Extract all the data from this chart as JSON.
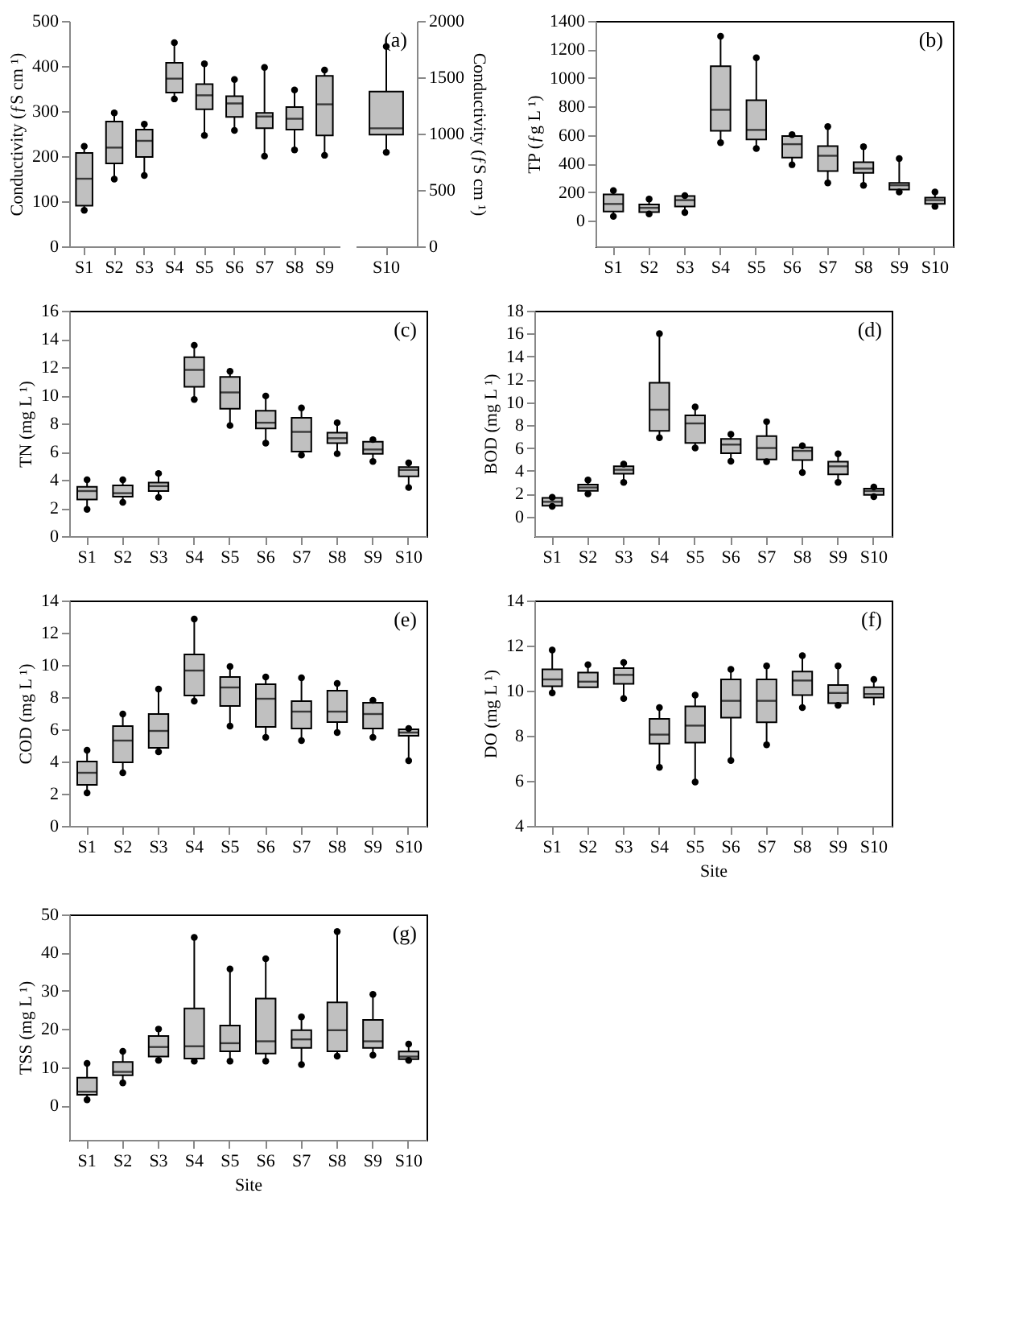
{
  "chart_data": [
    {
      "type": "box",
      "categories": [
        "S1",
        "S2",
        "S3",
        "S4",
        "S5",
        "S6",
        "S7",
        "S8",
        "S9"
      ],
      "ylabel": "Conductivity (ƒS cm ¹)",
      "ylim": [
        0,
        500
      ],
      "yticks": [
        0,
        100,
        200,
        300,
        400,
        500
      ],
      "grid": false,
      "boxes": [
        {
          "low": 80,
          "q1": 90,
          "median": 150,
          "q3": 207,
          "high": 222,
          "outliers": [
            80,
            222
          ]
        },
        {
          "low": 149,
          "q1": 184,
          "median": 219,
          "q3": 277,
          "high": 296,
          "outliers": [
            149,
            296
          ]
        },
        {
          "low": 157,
          "q1": 198,
          "median": 234,
          "q3": 259,
          "high": 271,
          "outliers": [
            157,
            271
          ]
        },
        {
          "low": 327,
          "q1": 341,
          "median": 372,
          "q3": 407,
          "high": 452,
          "outliers": [
            327,
            452
          ]
        },
        {
          "low": 246,
          "q1": 304,
          "median": 335,
          "q3": 360,
          "high": 405,
          "outliers": [
            246,
            405
          ]
        },
        {
          "low": 257,
          "q1": 287,
          "median": 317,
          "q3": 333,
          "high": 370,
          "outliers": [
            257,
            370
          ]
        },
        {
          "low": 200,
          "q1": 262,
          "median": 288,
          "q3": 296,
          "high": 397,
          "outliers": [
            200,
            397
          ]
        },
        {
          "low": 214,
          "q1": 259,
          "median": 283,
          "q3": 309,
          "high": 347,
          "outliers": [
            214,
            347
          ]
        },
        {
          "low": 202,
          "q1": 246,
          "median": 315,
          "q3": 378,
          "high": 391,
          "outliers": [
            202,
            391
          ]
        }
      ]
    },
    {
      "type": "box",
      "categories": [
        "S10"
      ],
      "y2label": "Conductivity (ƒS cm ¹)",
      "y2lim": [
        0,
        2000
      ],
      "y2ticks": [
        0,
        500,
        1000,
        1500,
        2000
      ],
      "grid": false,
      "annotations": [
        "(a)"
      ],
      "series": [
        {
          "axis": "y2",
          "boxes": [
            {
              "low": 834,
              "q1": 991,
              "median": 1047,
              "q3": 1374,
              "high": 1774,
              "outliers": [
                834,
                1774
              ]
            }
          ]
        }
      ]
    },
    {
      "type": "box",
      "categories": [
        "S1",
        "S2",
        "S3",
        "S4",
        "S5",
        "S6",
        "S7",
        "S8",
        "S9",
        "S10"
      ],
      "ylabel": "TP (ƒg L ¹)",
      "ylim": [
        -180,
        1400
      ],
      "yticks": [
        0,
        200,
        400,
        600,
        800,
        1000,
        1200,
        1400
      ],
      "grid": false,
      "annotations": [
        "(b)"
      ],
      "boxes": [
        {
          "low": 30,
          "q1": 64,
          "median": 117,
          "q3": 184,
          "high": 211,
          "outliers": [
            30,
            211
          ]
        },
        {
          "low": 47,
          "q1": 60,
          "median": 90,
          "q3": 114,
          "high": 151,
          "outliers": [
            47,
            151
          ]
        },
        {
          "low": 57,
          "q1": 100,
          "median": 144,
          "q3": 172,
          "high": 175,
          "outliers": [
            57,
            175
          ]
        },
        {
          "low": 546,
          "q1": 630,
          "median": 777,
          "q3": 1082,
          "high": 1293,
          "outliers": [
            546,
            1293
          ]
        },
        {
          "low": 506,
          "q1": 569,
          "median": 636,
          "q3": 844,
          "high": 1142,
          "outliers": [
            506,
            1142
          ]
        },
        {
          "low": 392,
          "q1": 442,
          "median": 536,
          "q3": 593,
          "high": 603,
          "outliers": [
            392,
            603
          ]
        },
        {
          "low": 265,
          "q1": 348,
          "median": 455,
          "q3": 522,
          "high": 660,
          "outliers": [
            265,
            660
          ]
        },
        {
          "low": 248,
          "q1": 335,
          "median": 365,
          "q3": 409,
          "high": 519,
          "outliers": [
            248,
            519
          ]
        },
        {
          "low": 201,
          "q1": 218,
          "median": 248,
          "q3": 265,
          "high": 435,
          "outliers": [
            201,
            435
          ]
        },
        {
          "low": 100,
          "q1": 117,
          "median": 144,
          "q3": 161,
          "high": 201,
          "outliers": [
            100,
            201
          ]
        }
      ]
    },
    {
      "type": "box",
      "categories": [
        "S1",
        "S2",
        "S3",
        "S4",
        "S5",
        "S6",
        "S7",
        "S8",
        "S9",
        "S10"
      ],
      "ylabel": "TN (mg L ¹)",
      "ylim": [
        0,
        16
      ],
      "yticks": [
        0,
        2,
        4,
        6,
        8,
        10,
        12,
        14,
        16
      ],
      "grid": false,
      "annotations": [
        "(c)"
      ],
      "boxes": [
        {
          "low": 1.9,
          "q1": 2.6,
          "median": 3.2,
          "q3": 3.5,
          "high": 4.0,
          "outliers": [
            1.9,
            4.0
          ]
        },
        {
          "low": 2.4,
          "q1": 2.8,
          "median": 3.05,
          "q3": 3.6,
          "high": 4.0,
          "outliers": [
            2.4,
            4.0
          ]
        },
        {
          "low": 2.75,
          "q1": 3.2,
          "median": 3.55,
          "q3": 3.8,
          "high": 4.45,
          "outliers": [
            2.75,
            4.45
          ]
        },
        {
          "low": 9.7,
          "q1": 10.6,
          "median": 11.8,
          "q3": 12.7,
          "high": 13.55,
          "outliers": [
            9.7,
            13.55
          ]
        },
        {
          "low": 7.85,
          "q1": 9.05,
          "median": 10.2,
          "q3": 11.3,
          "high": 11.7,
          "outliers": [
            7.85,
            11.7
          ]
        },
        {
          "low": 6.6,
          "q1": 7.65,
          "median": 8.05,
          "q3": 8.9,
          "high": 9.95,
          "outliers": [
            6.6,
            9.95
          ]
        },
        {
          "low": 5.75,
          "q1": 6.0,
          "median": 7.4,
          "q3": 8.4,
          "high": 9.1,
          "outliers": [
            5.75,
            9.1
          ]
        },
        {
          "low": 5.85,
          "q1": 6.6,
          "median": 6.95,
          "q3": 7.35,
          "high": 8.05,
          "outliers": [
            5.85,
            8.05
          ]
        },
        {
          "low": 5.3,
          "q1": 5.85,
          "median": 6.15,
          "q3": 6.7,
          "high": 6.85,
          "outliers": [
            5.3,
            6.85
          ]
        },
        {
          "low": 3.45,
          "q1": 4.25,
          "median": 4.7,
          "q3": 4.9,
          "high": 5.2,
          "outliers": [
            3.45,
            5.2
          ]
        }
      ]
    },
    {
      "type": "box",
      "categories": [
        "S1",
        "S2",
        "S3",
        "S4",
        "S5",
        "S6",
        "S7",
        "S8",
        "S9",
        "S10"
      ],
      "ylabel": "BOD (mg L ¹)",
      "ylim": [
        -1.7,
        18
      ],
      "yticks": [
        0,
        2,
        4,
        6,
        8,
        10,
        12,
        14,
        16,
        18
      ],
      "grid": false,
      "annotations": [
        "(d)"
      ],
      "boxes": [
        {
          "low": 0.9,
          "q1": 0.95,
          "median": 1.3,
          "q3": 1.65,
          "high": 1.7,
          "outliers": [
            0.9,
            1.7
          ]
        },
        {
          "low": 2.0,
          "q1": 2.25,
          "median": 2.55,
          "q3": 2.8,
          "high": 3.2,
          "outliers": [
            2.0,
            3.2
          ]
        },
        {
          "low": 3.0,
          "q1": 3.75,
          "median": 4.1,
          "q3": 4.4,
          "high": 4.6,
          "outliers": [
            3.0,
            4.6
          ]
        },
        {
          "low": 6.9,
          "q1": 7.5,
          "median": 9.35,
          "q3": 11.7,
          "high": 16.0,
          "outliers": [
            6.9,
            16.0
          ]
        },
        {
          "low": 6.0,
          "q1": 6.45,
          "median": 8.15,
          "q3": 8.85,
          "high": 9.6,
          "outliers": [
            6.0,
            9.6
          ]
        },
        {
          "low": 4.85,
          "q1": 5.55,
          "median": 6.3,
          "q3": 6.8,
          "high": 7.2,
          "outliers": [
            4.85,
            7.2
          ]
        },
        {
          "low": 4.8,
          "q1": 5.0,
          "median": 6.0,
          "q3": 7.05,
          "high": 8.3,
          "outliers": [
            4.8,
            8.3
          ]
        },
        {
          "low": 3.85,
          "q1": 4.95,
          "median": 5.75,
          "q3": 6.05,
          "high": 6.2,
          "outliers": [
            3.85,
            6.2
          ]
        },
        {
          "low": 3.0,
          "q1": 3.7,
          "median": 4.4,
          "q3": 4.8,
          "high": 5.5,
          "outliers": [
            3.0,
            5.5
          ]
        },
        {
          "low": 1.75,
          "q1": 1.9,
          "median": 2.25,
          "q3": 2.45,
          "high": 2.6,
          "outliers": [
            1.75,
            2.6
          ]
        }
      ]
    },
    {
      "type": "box",
      "categories": [
        "S1",
        "S2",
        "S3",
        "S4",
        "S5",
        "S6",
        "S7",
        "S8",
        "S9",
        "S10"
      ],
      "ylabel": "COD (mg L ¹)",
      "ylim": [
        0,
        14
      ],
      "yticks": [
        0,
        2,
        4,
        6,
        8,
        10,
        12,
        14
      ],
      "grid": false,
      "annotations": [
        "(e)"
      ],
      "boxes": [
        {
          "low": 2.05,
          "q1": 2.55,
          "median": 3.3,
          "q3": 4.0,
          "high": 4.7,
          "outliers": [
            2.05,
            4.7
          ]
        },
        {
          "low": 3.3,
          "q1": 3.95,
          "median": 5.3,
          "q3": 6.2,
          "high": 6.95,
          "outliers": [
            3.3,
            6.95
          ]
        },
        {
          "low": 4.6,
          "q1": 4.85,
          "median": 5.9,
          "q3": 6.95,
          "high": 8.5,
          "outliers": [
            4.6,
            8.5
          ]
        },
        {
          "low": 7.75,
          "q1": 8.1,
          "median": 9.65,
          "q3": 10.65,
          "high": 12.85,
          "outliers": [
            7.75,
            12.85
          ]
        },
        {
          "low": 6.2,
          "q1": 7.45,
          "median": 8.6,
          "q3": 9.25,
          "high": 9.9,
          "outliers": [
            6.2,
            9.9
          ]
        },
        {
          "low": 5.5,
          "q1": 6.15,
          "median": 7.9,
          "q3": 8.8,
          "high": 9.25,
          "outliers": [
            5.5,
            9.25
          ]
        },
        {
          "low": 5.3,
          "q1": 6.05,
          "median": 7.1,
          "q3": 7.75,
          "high": 9.2,
          "outliers": [
            5.3,
            9.2
          ]
        },
        {
          "low": 5.8,
          "q1": 6.45,
          "median": 7.1,
          "q3": 8.4,
          "high": 8.85,
          "outliers": [
            5.8,
            8.85
          ]
        },
        {
          "low": 5.5,
          "q1": 6.05,
          "median": 6.95,
          "q3": 7.65,
          "high": 7.8,
          "outliers": [
            5.5,
            7.8
          ]
        },
        {
          "low": 4.05,
          "q1": 5.6,
          "median": 5.8,
          "q3": 6.0,
          "high": 6.05,
          "outliers": [
            4.05,
            6.05
          ]
        }
      ]
    },
    {
      "type": "box",
      "categories": [
        "S1",
        "S2",
        "S3",
        "S4",
        "S5",
        "S6",
        "S7",
        "S8",
        "S9",
        "S10"
      ],
      "xlabel": "Site",
      "ylabel": "DO (mg L ¹)",
      "ylim": [
        4,
        14
      ],
      "yticks": [
        4,
        6,
        8,
        10,
        12,
        14
      ],
      "grid": false,
      "annotations": [
        "(f)"
      ],
      "boxes": [
        {
          "low": 9.9,
          "q1": 10.2,
          "median": 10.5,
          "q3": 10.95,
          "high": 11.8,
          "outliers": [
            9.9,
            11.8
          ]
        },
        {
          "low": 10.15,
          "q1": 10.15,
          "median": 10.4,
          "q3": 10.8,
          "high": 11.15,
          "outliers": [
            11.15
          ]
        },
        {
          "low": 9.65,
          "q1": 10.3,
          "median": 10.7,
          "q3": 11.0,
          "high": 11.25,
          "outliers": [
            9.65,
            11.25
          ]
        },
        {
          "low": 6.6,
          "q1": 7.65,
          "median": 8.05,
          "q3": 8.75,
          "high": 9.25,
          "outliers": [
            6.6,
            9.25
          ]
        },
        {
          "low": 5.95,
          "q1": 7.7,
          "median": 8.45,
          "q3": 9.3,
          "high": 9.8,
          "outliers": [
            5.95,
            9.8
          ]
        },
        {
          "low": 6.9,
          "q1": 8.8,
          "median": 9.55,
          "q3": 10.5,
          "high": 10.95,
          "outliers": [
            6.9,
            10.95
          ]
        },
        {
          "low": 7.6,
          "q1": 8.6,
          "median": 9.55,
          "q3": 10.5,
          "high": 11.1,
          "outliers": [
            7.6,
            11.1
          ]
        },
        {
          "low": 9.25,
          "q1": 9.8,
          "median": 10.45,
          "q3": 10.85,
          "high": 11.55,
          "outliers": [
            9.25,
            11.55
          ]
        },
        {
          "low": 9.35,
          "q1": 9.45,
          "median": 9.9,
          "q3": 10.25,
          "high": 11.1,
          "outliers": [
            9.35,
            11.1
          ]
        },
        {
          "low": 9.35,
          "q1": 9.7,
          "median": 9.85,
          "q3": 10.15,
          "high": 10.5,
          "outliers": [
            10.5
          ]
        }
      ]
    },
    {
      "type": "box",
      "categories": [
        "S1",
        "S2",
        "S3",
        "S4",
        "S5",
        "S6",
        "S7",
        "S8",
        "S9",
        "S10"
      ],
      "xlabel": "Site",
      "ylabel": "TSS (mg L ¹)",
      "ylim": [
        -9,
        50
      ],
      "yticks": [
        0,
        10,
        20,
        30,
        40,
        50
      ],
      "grid": false,
      "annotations": [
        "(g)"
      ],
      "boxes": [
        {
          "low": 1.5,
          "q1": 2.8,
          "median": 3.6,
          "q3": 7.3,
          "high": 11,
          "outliers": [
            1.5,
            11
          ]
        },
        {
          "low": 5.9,
          "q1": 7.9,
          "median": 8.8,
          "q3": 11.4,
          "high": 14.2,
          "outliers": [
            5.9,
            14.2
          ]
        },
        {
          "low": 11.8,
          "q1": 12.8,
          "median": 15.3,
          "q3": 18.2,
          "high": 20,
          "outliers": [
            11.8,
            20
          ]
        },
        {
          "low": 11.6,
          "q1": 12.3,
          "median": 15.5,
          "q3": 25.4,
          "high": 44,
          "outliers": [
            11.6,
            44
          ]
        },
        {
          "low": 11.6,
          "q1": 14.2,
          "median": 16.3,
          "q3": 20.9,
          "high": 35.7,
          "outliers": [
            11.6,
            35.7
          ]
        },
        {
          "low": 11.6,
          "q1": 13.6,
          "median": 16.8,
          "q3": 28,
          "high": 38.4,
          "outliers": [
            11.6,
            38.4
          ]
        },
        {
          "low": 10.7,
          "q1": 15.1,
          "median": 17.3,
          "q3": 19.7,
          "high": 23.2,
          "outliers": [
            10.7,
            23.2
          ]
        },
        {
          "low": 12.9,
          "q1": 14.2,
          "median": 19.7,
          "q3": 27,
          "high": 45.5,
          "outliers": [
            12.9,
            45.5
          ]
        },
        {
          "low": 13.2,
          "q1": 15.1,
          "median": 16.8,
          "q3": 22.4,
          "high": 29.1,
          "outliers": [
            13.2,
            29.1
          ]
        },
        {
          "low": 11.8,
          "q1": 12.1,
          "median": 12.8,
          "q3": 14.1,
          "high": 16.1,
          "outliers": [
            11.8,
            16.1
          ]
        }
      ]
    }
  ]
}
